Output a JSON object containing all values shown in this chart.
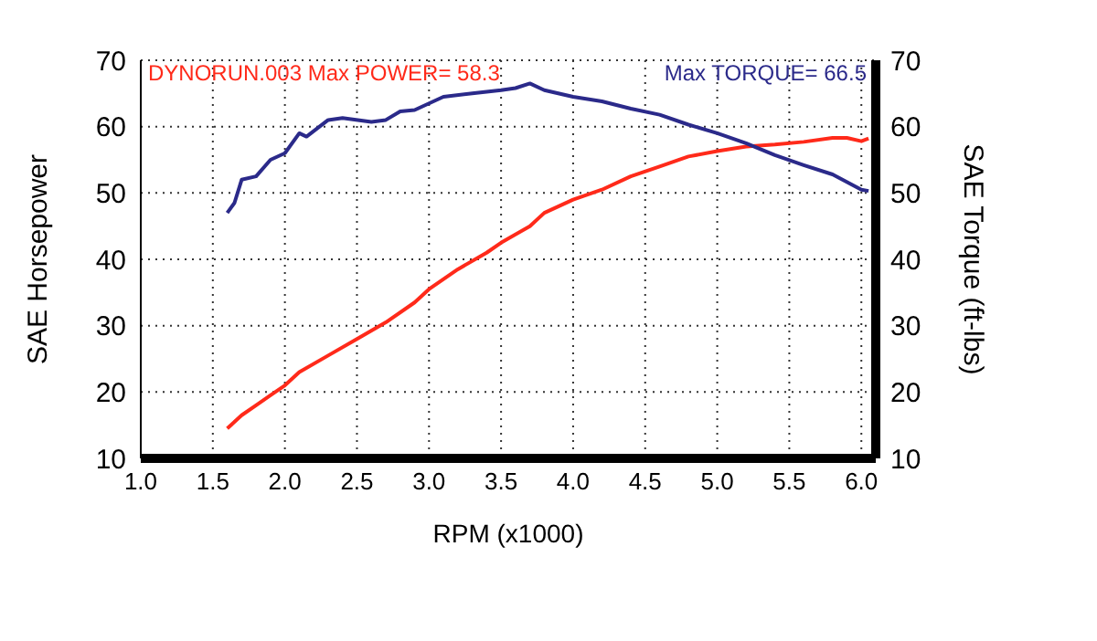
{
  "chart_data": {
    "type": "line",
    "xlabel": "RPM (x1000)",
    "ylabel": "SAE Horsepower",
    "y2label": "SAE Torque (ft-lbs)",
    "annotations": [
      "DYNORUN.003  Max POWER= 58.3",
      "Max TORQUE= 66.5"
    ],
    "xlim": [
      1.0,
      6.1
    ],
    "xticks": [
      {
        "value": 1.0,
        "label": "1.0"
      },
      {
        "value": 1.5,
        "label": "1.5"
      },
      {
        "value": 2.0,
        "label": "2.0"
      },
      {
        "value": 2.5,
        "label": "2.5"
      },
      {
        "value": 3.0,
        "label": "3.0"
      },
      {
        "value": 3.5,
        "label": "3.5"
      },
      {
        "value": 4.0,
        "label": "4.0"
      },
      {
        "value": 4.5,
        "label": "4.5"
      },
      {
        "value": 5.0,
        "label": "5.0"
      },
      {
        "value": 5.5,
        "label": "5.5"
      },
      {
        "value": 6.0,
        "label": "6.0"
      }
    ],
    "ylim": [
      10,
      70
    ],
    "yticks": [
      10,
      20,
      30,
      40,
      50,
      60,
      70
    ],
    "y2lim": [
      10,
      70
    ],
    "y2ticks": [
      10,
      20,
      30,
      40,
      50,
      60,
      70
    ],
    "grid": true,
    "marker": "none",
    "line_style": "solid",
    "series": [
      {
        "color": "#ff2a1a",
        "x": [
          1.6,
          1.7,
          1.8,
          1.9,
          2.0,
          2.1,
          2.3,
          2.5,
          2.7,
          2.9,
          3.0,
          3.2,
          3.4,
          3.5,
          3.7,
          3.8,
          4.0,
          4.2,
          4.4,
          4.6,
          4.8,
          5.0,
          5.2,
          5.4,
          5.6,
          5.8,
          5.9,
          6.0,
          6.05
        ],
        "values": [
          14.5,
          16.5,
          18,
          19.5,
          21,
          23,
          25.5,
          28,
          30.5,
          33.5,
          35.5,
          38.5,
          41,
          42.5,
          45,
          47,
          49,
          50.5,
          52.5,
          54,
          55.5,
          56.3,
          57,
          57.3,
          57.7,
          58.3,
          58.3,
          57.8,
          58.2
        ]
      },
      {
        "color": "#2b2a8a",
        "axis": "y2",
        "x": [
          1.6,
          1.65,
          1.7,
          1.8,
          1.9,
          2.0,
          2.1,
          2.15,
          2.3,
          2.4,
          2.6,
          2.7,
          2.8,
          2.9,
          3.0,
          3.1,
          3.3,
          3.5,
          3.6,
          3.7,
          3.8,
          4.0,
          4.2,
          4.4,
          4.6,
          4.8,
          5.0,
          5.2,
          5.4,
          5.6,
          5.8,
          6.0,
          6.05
        ],
        "values": [
          47,
          48.5,
          52,
          52.5,
          55,
          56,
          59,
          58.5,
          61,
          61.3,
          60.7,
          61,
          62.3,
          62.5,
          63.5,
          64.5,
          65,
          65.5,
          65.8,
          66.5,
          65.5,
          64.5,
          63.8,
          62.7,
          61.8,
          60.3,
          59,
          57.5,
          55.7,
          54.2,
          52.8,
          50.5,
          50.3
        ]
      }
    ]
  }
}
